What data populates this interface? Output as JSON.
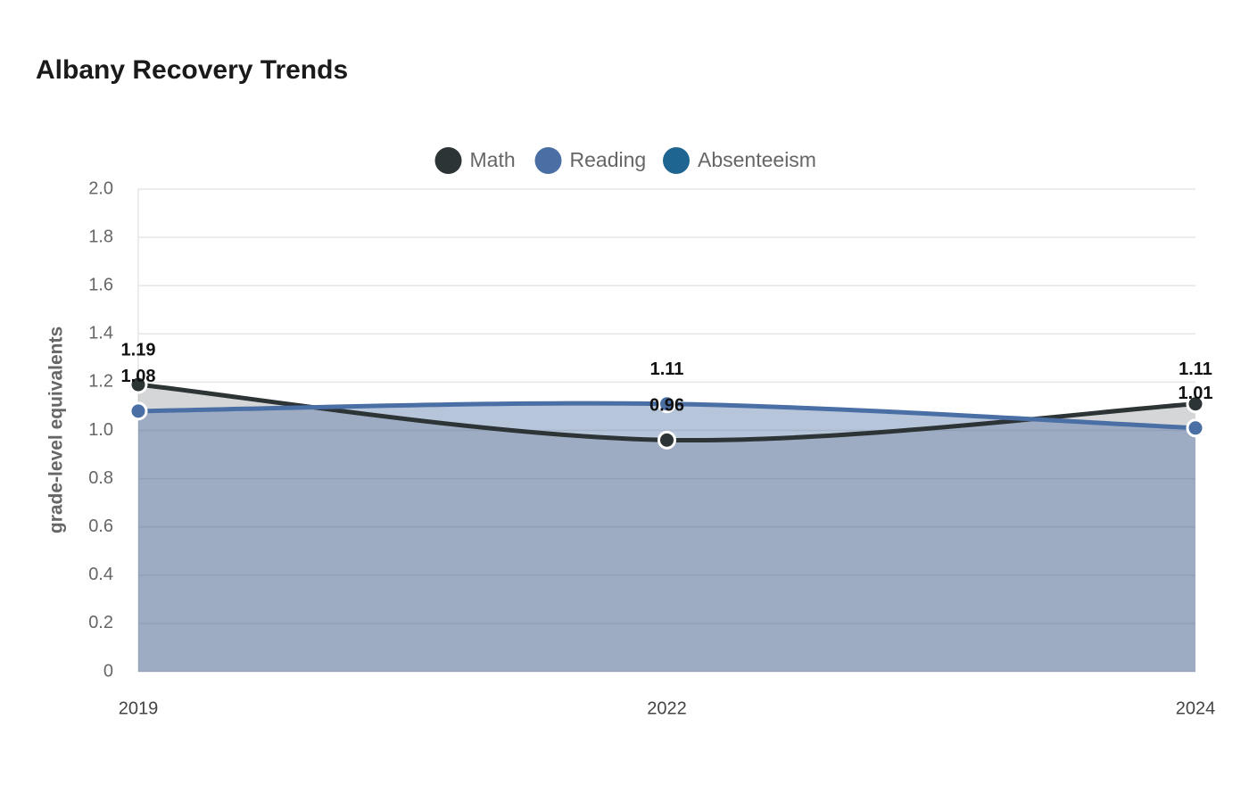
{
  "chart_data": {
    "type": "area",
    "title": "Albany Recovery Trends",
    "y_label": "grade-level equivalents",
    "categories": [
      "2019",
      "2022",
      "2024"
    ],
    "series": [
      {
        "name": "Math",
        "color": "#2d3436",
        "values": [
          1.19,
          0.96,
          1.11
        ]
      },
      {
        "name": "Reading",
        "color": "#4a6fa5",
        "values": [
          1.08,
          1.11,
          1.01
        ]
      },
      {
        "name": "Absenteeism",
        "color": "#1f6591",
        "values": [
          null,
          null,
          null
        ]
      }
    ],
    "ylim": [
      0,
      2
    ],
    "yticks": [
      0,
      0.2,
      0.4,
      0.6,
      0.8,
      {
        "value": 1,
        "label": "1.0"
      },
      1.2,
      1.4,
      1.6,
      1.8,
      {
        "value": 2,
        "label": "2.0"
      }
    ],
    "grid": true,
    "legend": "top"
  }
}
